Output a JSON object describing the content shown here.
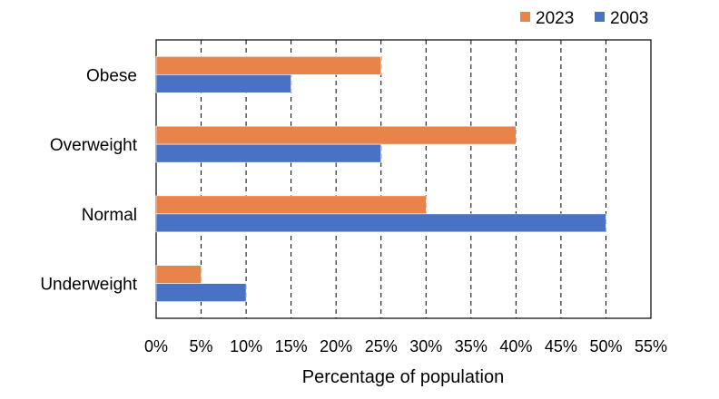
{
  "chart_data": {
    "type": "bar",
    "orientation": "horizontal",
    "categories": [
      "Obese",
      "Overweight",
      "Normal",
      "Underweight"
    ],
    "series": [
      {
        "name": "2023",
        "color": "#E8834A",
        "values": [
          25,
          40,
          30,
          5
        ]
      },
      {
        "name": "2003",
        "color": "#4A72C4",
        "values": [
          15,
          25,
          50,
          10
        ]
      }
    ],
    "xlabel": "Percentage of population",
    "xlim": [
      0,
      55
    ],
    "xticks": [
      0,
      5,
      10,
      15,
      20,
      25,
      30,
      35,
      40,
      45,
      50,
      55
    ],
    "xtick_suffix": "%",
    "grid": "vertical dashed",
    "legend_position": "top-right"
  }
}
